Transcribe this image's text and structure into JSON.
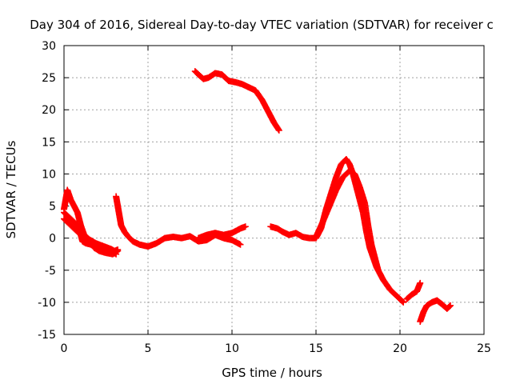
{
  "chart_data": {
    "type": "scatter",
    "title": "Day 304 of 2016, Sidereal Day-to-day VTEC variation (SDTVAR) for receiver c",
    "xlabel": "GPS time / hours",
    "ylabel": "SDTVAR / TECUs",
    "xlim": [
      0,
      25
    ],
    "ylim": [
      -15,
      30
    ],
    "xticks": [
      0,
      5,
      10,
      15,
      20,
      25
    ],
    "yticks": [
      -15,
      -10,
      -5,
      0,
      5,
      10,
      15,
      20,
      25,
      30
    ],
    "grid": true,
    "marker": "+",
    "color": "#ff0000",
    "series": [
      {
        "x": [
          0.0,
          0.2,
          0.4,
          0.6,
          0.8,
          1.0,
          1.1,
          1.3,
          1.6,
          2.0,
          2.4,
          2.8,
          3.0,
          3.2
        ],
        "y": [
          3.0,
          2.5,
          2.0,
          1.5,
          1.0,
          0.5,
          -0.5,
          -0.8,
          -1.0,
          -1.3,
          -1.5,
          -1.7,
          -2.0,
          -1.8
        ]
      },
      {
        "x": [
          0.0,
          0.1,
          0.2,
          0.4,
          0.6,
          0.8,
          1.0,
          1.2,
          1.5,
          1.9,
          2.3,
          2.7,
          3.1
        ],
        "y": [
          4.5,
          6.0,
          7.5,
          6.0,
          5.0,
          4.0,
          2.0,
          0.5,
          -0.2,
          -0.8,
          -1.2,
          -1.6,
          -2.5
        ]
      },
      {
        "x": [
          0.0,
          0.2,
          0.4,
          0.6,
          0.8,
          1.0,
          1.2,
          1.5,
          1.8,
          2.1,
          2.5,
          2.9,
          3.2
        ],
        "y": [
          4.0,
          3.5,
          3.0,
          2.5,
          2.0,
          1.0,
          0.0,
          -0.5,
          -1.5,
          -2.0,
          -2.3,
          -2.5,
          -2.0
        ]
      },
      {
        "x": [
          3.1,
          3.2,
          3.3,
          3.4,
          3.6,
          3.8,
          4.1,
          4.5,
          5.0,
          5.5,
          6.0,
          6.5,
          7.0,
          7.5,
          8.0,
          8.5,
          9.0,
          9.5,
          10.0,
          10.5
        ],
        "y": [
          6.5,
          5.0,
          3.5,
          2.0,
          1.0,
          0.3,
          -0.5,
          -1.0,
          -1.3,
          -0.8,
          0.0,
          0.2,
          0.0,
          0.3,
          -0.5,
          -0.3,
          0.5,
          0.0,
          -0.3,
          -1.0
        ]
      },
      {
        "x": [
          8.0,
          8.5,
          9.0,
          9.5,
          10.0,
          10.5,
          10.8
        ],
        "y": [
          0.0,
          0.5,
          0.8,
          0.5,
          0.8,
          1.5,
          1.8
        ]
      },
      {
        "x": [
          7.8,
          8.0,
          8.3,
          8.6,
          9.0,
          9.4,
          9.8,
          10.2,
          10.6,
          11.0,
          11.4,
          11.8,
          12.2,
          12.5,
          12.8
        ],
        "y": [
          26.0,
          25.5,
          24.8,
          25.0,
          25.7,
          25.5,
          24.5,
          24.3,
          24.0,
          23.5,
          23.0,
          21.5,
          19.5,
          18.0,
          16.8
        ]
      },
      {
        "x": [
          12.3,
          12.7,
          13.0,
          13.4,
          13.8,
          14.2,
          14.6,
          15.0,
          15.3,
          15.6,
          15.9,
          16.2,
          16.5,
          16.8,
          17.0,
          17.2,
          17.5,
          17.8,
          18.0,
          18.2,
          18.4,
          18.6,
          18.8,
          19.0,
          19.4,
          19.8,
          20.2
        ],
        "y": [
          1.8,
          1.5,
          1.0,
          0.5,
          0.8,
          0.2,
          0.0,
          0.0,
          1.5,
          4.5,
          7.0,
          9.5,
          11.5,
          12.3,
          11.5,
          10.0,
          7.0,
          4.0,
          1.0,
          -1.5,
          -3.0,
          -4.5,
          -5.5,
          -6.5,
          -8.0,
          -9.0,
          -10.0
        ]
      },
      {
        "x": [
          15.0,
          15.4,
          15.8,
          16.2,
          16.6,
          17.0,
          17.3,
          17.6,
          17.9,
          18.1,
          18.3,
          18.5,
          18.7
        ],
        "y": [
          0.2,
          2.5,
          5.0,
          7.5,
          9.5,
          10.5,
          10.0,
          8.0,
          5.5,
          2.0,
          -1.0,
          -3.0,
          -5.0
        ]
      },
      {
        "x": [
          20.4,
          20.7,
          21.0,
          21.2
        ],
        "y": [
          -9.5,
          -8.8,
          -8.3,
          -7.0
        ]
      },
      {
        "x": [
          21.2,
          21.4,
          21.6,
          21.9,
          22.2,
          22.5,
          22.8,
          23.0
        ],
        "y": [
          -13.0,
          -11.5,
          -10.5,
          -10.0,
          -9.7,
          -10.3,
          -11.0,
          -10.5
        ]
      }
    ]
  }
}
